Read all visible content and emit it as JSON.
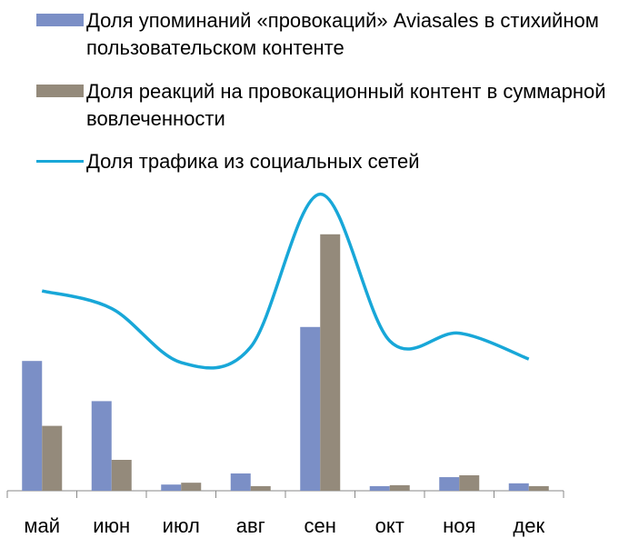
{
  "chart_data": {
    "type": "bar-line",
    "categories": [
      "май",
      "июн",
      "июл",
      "авг",
      "сен",
      "окт",
      "ноя",
      "дек"
    ],
    "series": [
      {
        "name": "Доля упоминаний «провокаций» Aviasales в стихийном пользовательском контенте",
        "type": "bar",
        "color": "#7b8fc6",
        "values": [
          42,
          29,
          2,
          5.6,
          53,
          1.5,
          4.4,
          2.4
        ]
      },
      {
        "name": "Доля реакций на провокационный контент в суммарной вовлеченности",
        "type": "bar",
        "color": "#948a7b",
        "values": [
          21,
          10,
          2.6,
          1.5,
          83,
          1.8,
          5,
          1.5
        ]
      },
      {
        "name": "Доля трафика из социальных сетей",
        "type": "line",
        "color": "#18a7d8",
        "values": [
          64.7,
          59,
          41.5,
          46.5,
          96,
          48.5,
          51,
          42.6
        ]
      }
    ],
    "ylim": [
      0,
      100
    ]
  }
}
